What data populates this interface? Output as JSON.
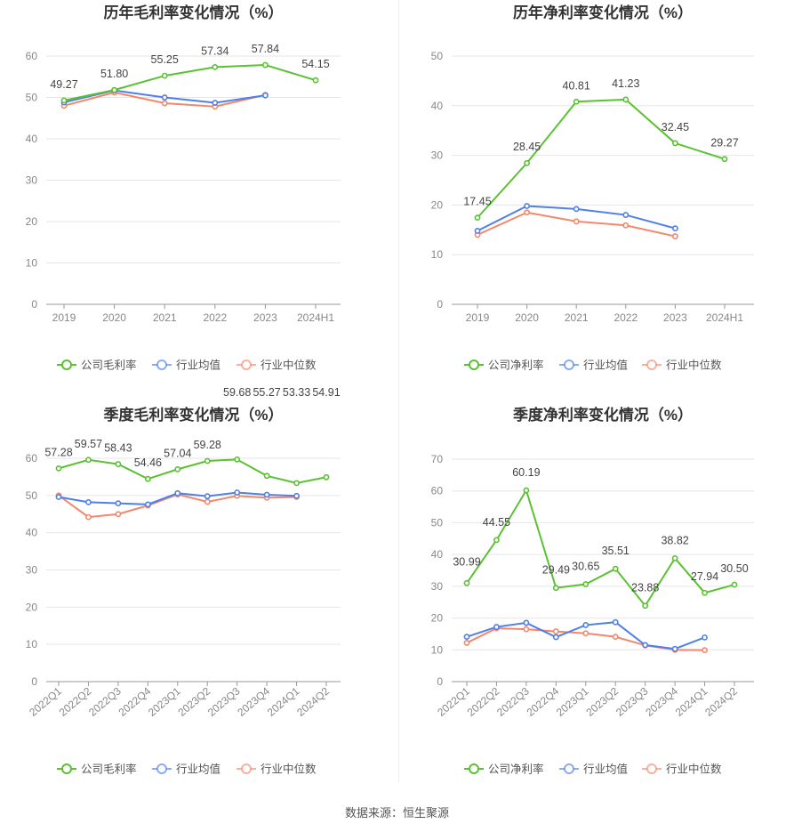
{
  "source_text": "数据来源：恒生聚源",
  "colors": {
    "company": "#5ac231",
    "industry_avg": "#4f7fe8",
    "industry_median": "#f4876b",
    "grid": "#e6e6e6",
    "axis": "#999999"
  },
  "chart_data": [
    {
      "type": "line",
      "title": "历年毛利率变化情况（%）",
      "categories": [
        "2019",
        "2020",
        "2021",
        "2022",
        "2023",
        "2024H1"
      ],
      "ylim": [
        0,
        60
      ],
      "yticks": [
        0,
        10,
        20,
        30,
        40,
        50,
        60
      ],
      "rotate_x": false,
      "legend_position": "bottom",
      "series": [
        {
          "name": "公司毛利率",
          "color": "#5ac231",
          "labels": true,
          "values": [
            49.27,
            51.8,
            55.25,
            57.34,
            57.84,
            54.15
          ]
        },
        {
          "name": "行业均值",
          "color": "#4f7fe8",
          "labels": false,
          "values": [
            48.8,
            51.7,
            50.0,
            48.7,
            50.5,
            null
          ]
        },
        {
          "name": "行业中位数",
          "color": "#f4876b",
          "labels": false,
          "values": [
            48.0,
            51.2,
            48.6,
            47.8,
            50.6,
            null
          ]
        }
      ]
    },
    {
      "type": "line",
      "title": "历年净利率变化情况（%）",
      "categories": [
        "2019",
        "2020",
        "2021",
        "2022",
        "2023",
        "2024H1"
      ],
      "ylim": [
        0,
        50
      ],
      "yticks": [
        0,
        10,
        20,
        30,
        40,
        50
      ],
      "rotate_x": false,
      "legend_position": "bottom",
      "series": [
        {
          "name": "公司净利率",
          "color": "#5ac231",
          "labels": true,
          "values": [
            17.45,
            28.45,
            40.81,
            41.23,
            32.45,
            29.27
          ]
        },
        {
          "name": "行业均值",
          "color": "#4f7fe8",
          "labels": false,
          "values": [
            14.8,
            19.8,
            19.2,
            18.0,
            15.3,
            null
          ]
        },
        {
          "name": "行业中位数",
          "color": "#f4876b",
          "labels": false,
          "values": [
            14.0,
            18.5,
            16.7,
            15.9,
            13.7,
            null
          ]
        }
      ]
    },
    {
      "type": "line",
      "title": "季度毛利率变化情况（%）",
      "categories": [
        "2022Q1",
        "2022Q2",
        "2022Q3",
        "2022Q4",
        "2023Q1",
        "2023Q2",
        "2023Q3",
        "2023Q4",
        "2024Q1",
        "2024Q2"
      ],
      "ylim": [
        0,
        60
      ],
      "yticks": [
        0,
        10,
        20,
        30,
        40,
        50,
        60
      ],
      "rotate_x": true,
      "legend_position": "bottom",
      "series": [
        {
          "name": "公司毛利率",
          "color": "#5ac231",
          "labels": true,
          "values": [
            57.28,
            59.57,
            58.43,
            54.46,
            57.04,
            59.28,
            59.68,
            55.27,
            53.33,
            54.91
          ]
        },
        {
          "name": "行业均值",
          "color": "#4f7fe8",
          "labels": false,
          "values": [
            49.6,
            48.2,
            47.9,
            47.6,
            50.6,
            49.8,
            50.8,
            50.2,
            49.9,
            null
          ]
        },
        {
          "name": "行业中位数",
          "color": "#f4876b",
          "labels": false,
          "values": [
            50.0,
            44.2,
            45.0,
            47.3,
            50.3,
            48.3,
            49.9,
            49.4,
            49.6,
            null
          ]
        }
      ]
    },
    {
      "type": "line",
      "title": "季度净利率变化情况（%）",
      "categories": [
        "2022Q1",
        "2022Q2",
        "2022Q3",
        "2022Q4",
        "2023Q1",
        "2023Q2",
        "2023Q3",
        "2023Q4",
        "2024Q1",
        "2024Q2"
      ],
      "ylim": [
        0,
        70
      ],
      "yticks": [
        0,
        10,
        20,
        30,
        40,
        50,
        60,
        70
      ],
      "rotate_x": true,
      "legend_position": "bottom",
      "series": [
        {
          "name": "公司净利率",
          "color": "#5ac231",
          "labels": true,
          "values": [
            30.99,
            44.55,
            60.19,
            29.49,
            30.65,
            35.51,
            23.88,
            38.82,
            27.94,
            30.5
          ]
        },
        {
          "name": "行业均值",
          "color": "#4f7fe8",
          "labels": false,
          "values": [
            14.1,
            17.2,
            18.5,
            14.0,
            17.8,
            18.7,
            11.5,
            10.3,
            13.9,
            null
          ]
        },
        {
          "name": "行业中位数",
          "color": "#f4876b",
          "labels": false,
          "values": [
            12.2,
            16.8,
            16.5,
            15.8,
            15.2,
            14.1,
            11.4,
            10.0,
            9.9,
            null
          ]
        }
      ]
    }
  ]
}
